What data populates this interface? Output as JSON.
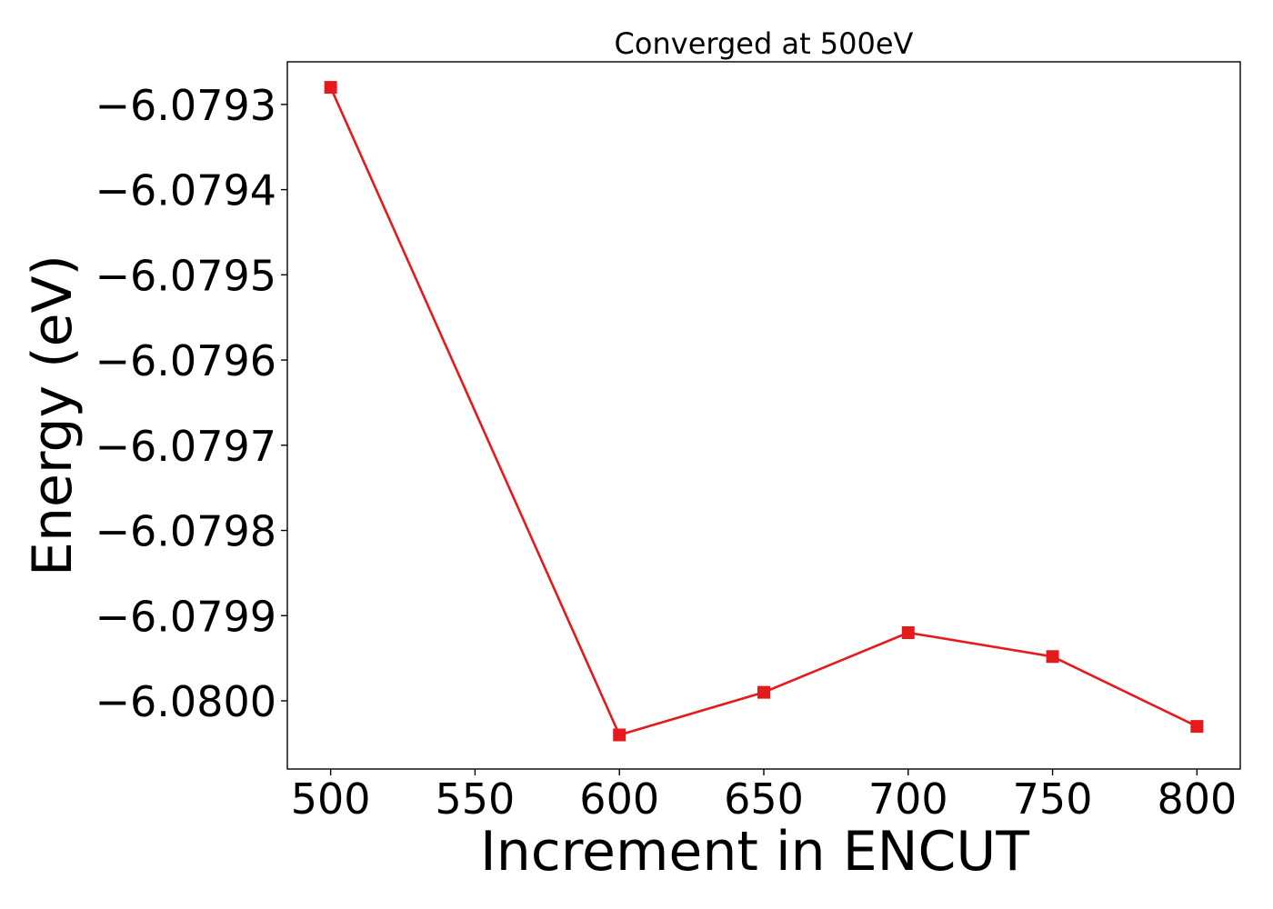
{
  "chart_data": {
    "type": "line",
    "title": "Converged at 500eV",
    "xlabel": "Increment in ENCUT",
    "ylabel": "Energy (eV)",
    "x": [
      500,
      600,
      650,
      700,
      750,
      800
    ],
    "series": [
      {
        "values": [
          -6.07928,
          -6.08004,
          -6.07999,
          -6.07992,
          -6.079948,
          -6.08003
        ],
        "color": "#e41a1c",
        "marker": "square"
      }
    ],
    "xlim": [
      485,
      815
    ],
    "ylim": [
      -6.08008,
      -6.07925
    ],
    "xticks": [
      500,
      550,
      600,
      650,
      700,
      750,
      800
    ],
    "xtick_labels": [
      "500",
      "550",
      "600",
      "650",
      "700",
      "750",
      "800"
    ],
    "yticks": [
      -6.0793,
      -6.0794,
      -6.0795,
      -6.0796,
      -6.0797,
      -6.0798,
      -6.0799,
      -6.08
    ],
    "ytick_labels": [
      "−6.0793",
      "−6.0794",
      "−6.0795",
      "−6.0796",
      "−6.0797",
      "−6.0798",
      "−6.0799",
      "−6.0800"
    ],
    "grid": false,
    "legend": "none"
  }
}
